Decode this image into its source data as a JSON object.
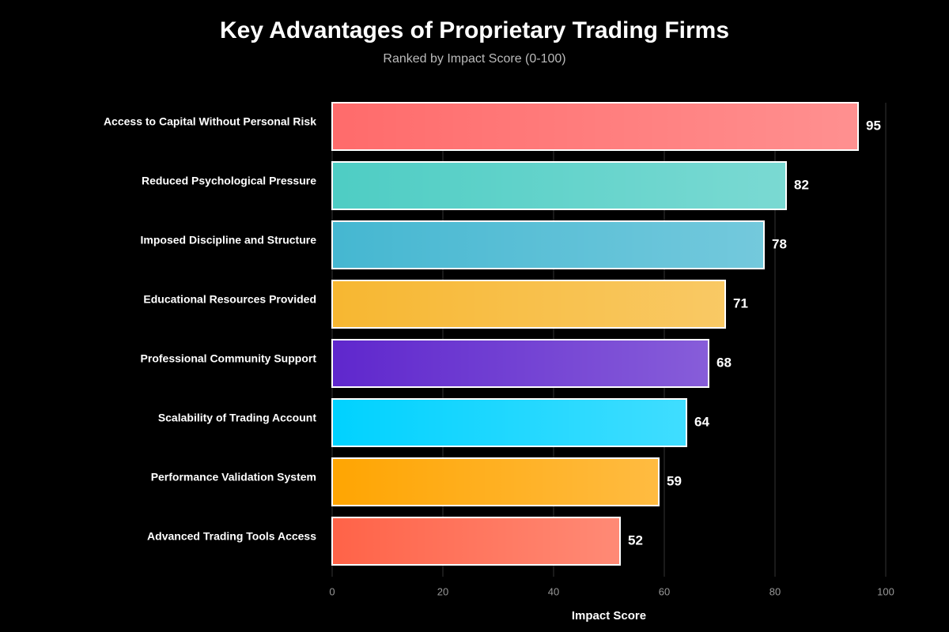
{
  "chart_data": {
    "type": "bar",
    "orientation": "horizontal",
    "title": "Key Advantages of Proprietary Trading Firms",
    "subtitle": "Ranked by Impact Score (0-100)",
    "x_label": "Impact Score",
    "categories": [
      "Access to Capital Without Personal Risk",
      "Reduced Psychological Pressure",
      "Imposed Discipline and Structure",
      "Educational Resources Provided",
      "Professional Community Support",
      "Scalability of Trading Account",
      "Performance Validation System",
      "Advanced Trading Tools Access"
    ],
    "values": [
      95,
      82,
      78,
      71,
      68,
      64,
      59,
      52
    ],
    "colors": [
      "#ff6b6b",
      "#4ecdc4",
      "#45b7d1",
      "#f7b731",
      "#5f27cd",
      "#00d2ff",
      "#ffa502",
      "#ff6348"
    ],
    "xlim": [
      0,
      100
    ],
    "xticks": [
      0,
      20,
      40,
      60,
      80,
      100
    ],
    "grid": true
  }
}
